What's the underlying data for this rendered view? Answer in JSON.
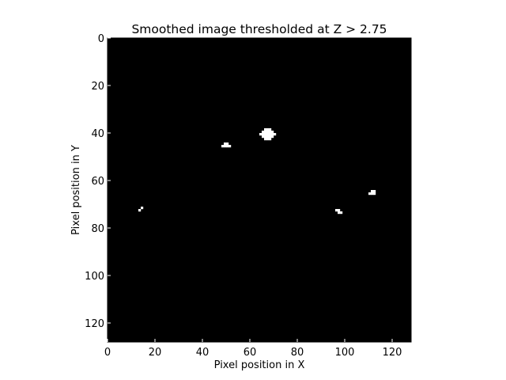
{
  "chart_data": {
    "type": "heatmap",
    "title": "Smoothed image thresholded at Z > 2.75",
    "xlabel": "Pixel position in X",
    "ylabel": "Pixel position in Y",
    "xlim": [
      0,
      128
    ],
    "ylim": [
      128,
      0
    ],
    "y_axis_inverted": true,
    "x_ticks": [
      0,
      20,
      40,
      60,
      80,
      100,
      120
    ],
    "y_ticks": [
      0,
      20,
      40,
      60,
      80,
      100,
      120
    ],
    "grid": false,
    "colormap": "gray",
    "background_value": 0,
    "background_color": "#000000",
    "foreground_color": "#ffffff",
    "image_size": [
      128,
      128
    ],
    "above_threshold_pixels": [
      {
        "x": 66,
        "y": 38
      },
      {
        "x": 67,
        "y": 38
      },
      {
        "x": 68,
        "y": 38
      },
      {
        "x": 65,
        "y": 39
      },
      {
        "x": 66,
        "y": 39
      },
      {
        "x": 67,
        "y": 39
      },
      {
        "x": 68,
        "y": 39
      },
      {
        "x": 69,
        "y": 39
      },
      {
        "x": 64,
        "y": 40
      },
      {
        "x": 65,
        "y": 40
      },
      {
        "x": 66,
        "y": 40
      },
      {
        "x": 67,
        "y": 40
      },
      {
        "x": 68,
        "y": 40
      },
      {
        "x": 69,
        "y": 40
      },
      {
        "x": 70,
        "y": 40
      },
      {
        "x": 65,
        "y": 41
      },
      {
        "x": 66,
        "y": 41
      },
      {
        "x": 67,
        "y": 41
      },
      {
        "x": 68,
        "y": 41
      },
      {
        "x": 69,
        "y": 41
      },
      {
        "x": 66,
        "y": 42
      },
      {
        "x": 67,
        "y": 42
      },
      {
        "x": 68,
        "y": 42
      },
      {
        "x": 49,
        "y": 44
      },
      {
        "x": 50,
        "y": 44
      },
      {
        "x": 48,
        "y": 45
      },
      {
        "x": 49,
        "y": 45
      },
      {
        "x": 50,
        "y": 45
      },
      {
        "x": 51,
        "y": 45
      },
      {
        "x": 111,
        "y": 64
      },
      {
        "x": 112,
        "y": 64
      },
      {
        "x": 110,
        "y": 65
      },
      {
        "x": 111,
        "y": 65
      },
      {
        "x": 112,
        "y": 65
      },
      {
        "x": 14,
        "y": 71
      },
      {
        "x": 13,
        "y": 72
      },
      {
        "x": 96,
        "y": 72
      },
      {
        "x": 97,
        "y": 72
      },
      {
        "x": 97,
        "y": 73
      },
      {
        "x": 98,
        "y": 73
      }
    ]
  }
}
